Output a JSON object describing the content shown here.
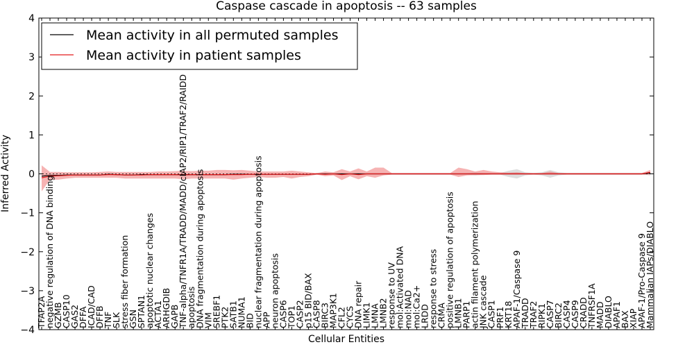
{
  "chart_data": {
    "type": "line",
    "title": "Caspase cascade in apoptosis -- 63 samples",
    "xlabel": "Cellular Entities",
    "ylabel": "Inferred Activity",
    "ylim": [
      -4,
      4
    ],
    "yticks": [
      -4,
      -3,
      -2,
      -1,
      0,
      1,
      2,
      3,
      4
    ],
    "grid": false,
    "legend_position": "top-left",
    "categories": [
      "TFAP2A",
      "negative regulation of DNA binding",
      "GZMB",
      "CASP10",
      "GAS2",
      "DFFA",
      "ICAD/CAD",
      "DFFB",
      "TNF",
      "SLK",
      "stress fiber formation",
      "GSN",
      "SPTAN1",
      "apoptotic nuclear changes",
      "ACTA1",
      "ARHGDIB",
      "GAPB",
      "TNF-alpha/TNFR1A/TRADD/MADD/cIAP2/RIP1/TRAF2/RAIDD",
      "apoptosis",
      "DNA fragmentation during apoptosis",
      "VIM",
      "SREBF1",
      "PTK2",
      "SATB1",
      "NUMA1",
      "BID",
      "nuclear fragmentation during apoptosis",
      "APP",
      "neuron apoptosis",
      "CASP6",
      "TOP1",
      "CASP2",
      "p15 BID/BAX",
      "CASP8",
      "BIRC3",
      "MAP3K1",
      "CFL2",
      "CYCS",
      "DNA repair",
      "LIMK1",
      "LMNA",
      "LMNB2",
      "response to UV",
      "mol:Activated DNA",
      "mol:NAD",
      "mol:Ca2+",
      "LRDD",
      "response to stress",
      "CRMA",
      "positive regulation of apoptosis",
      "LMNB1",
      "PARP1",
      "actin filament polymerization",
      "JNK cascade",
      "CASP1",
      "PRF1",
      "KRT18",
      "APAF-1/Caspase 9",
      "TRADD",
      "TRAF2",
      "RIPK1",
      "CASP7",
      "BIRC2",
      "CASP4",
      "CASP9",
      "CRADD",
      "TNFRSF1A",
      "MADD",
      "DIABLO",
      "APAF1",
      "BAX",
      "XIAP",
      "APAF-1/Pro-Caspase 9",
      "Mammalian IAPs/DIABLO"
    ],
    "series": [
      {
        "name": "Mean activity in all permuted samples",
        "color": "#000000",
        "values": [
          -0.06,
          -0.04,
          -0.04,
          -0.03,
          -0.03,
          -0.03,
          -0.03,
          -0.03,
          -0.01,
          -0.02,
          -0.03,
          -0.03,
          -0.02,
          -0.02,
          -0.02,
          -0.02,
          -0.02,
          -0.02,
          -0.02,
          -0.02,
          -0.02,
          -0.02,
          -0.02,
          -0.01,
          -0.01,
          -0.01,
          -0.01,
          -0.01,
          -0.01,
          -0.01,
          -0.01,
          -0.01,
          -0.01,
          0.0,
          0.0,
          0.0,
          0.0,
          0.0,
          0.0,
          0.0,
          0.0,
          0.0,
          0.0,
          0.0,
          0.0,
          0.0,
          0.0,
          0.0,
          0.0,
          0.0,
          0.0,
          0.0,
          0.0,
          0.0,
          0.0,
          0.0,
          0.0,
          0.0,
          0.0,
          0.0,
          0.0,
          0.0,
          0.0,
          0.0,
          0.0,
          0.0,
          0.0,
          0.0,
          0.0,
          0.0,
          0.0,
          0.0,
          0.0,
          0.02
        ],
        "band_low": [
          -0.06,
          -0.05,
          -0.05,
          -0.04,
          -0.04,
          -0.04,
          -0.04,
          -0.04,
          -0.03,
          -0.04,
          -0.04,
          -0.04,
          -0.04,
          -0.04,
          -0.04,
          -0.04,
          -0.04,
          -0.04,
          -0.04,
          -0.04,
          -0.04,
          -0.04,
          -0.04,
          -0.03,
          -0.03,
          -0.03,
          -0.03,
          -0.03,
          -0.03,
          -0.03,
          -0.03,
          -0.03,
          -0.03,
          -0.02,
          -0.02,
          -0.02,
          -0.02,
          -0.02,
          -0.02,
          -0.02,
          -0.02,
          -0.02,
          -0.02,
          -0.02,
          -0.02,
          -0.02,
          -0.02,
          -0.02,
          -0.02,
          -0.02,
          -0.02,
          -0.02,
          -0.04,
          -0.02,
          -0.02,
          -0.02,
          -0.08,
          -0.12,
          -0.04,
          -0.02,
          -0.04,
          -0.1,
          -0.04,
          -0.02,
          -0.02,
          -0.02,
          -0.02,
          -0.02,
          -0.02,
          -0.02,
          -0.02,
          -0.02,
          -0.02,
          -0.04
        ],
        "band_high": [
          -0.02,
          -0.02,
          -0.02,
          -0.01,
          -0.01,
          -0.01,
          -0.01,
          -0.01,
          0.0,
          -0.01,
          -0.01,
          -0.01,
          -0.01,
          -0.01,
          -0.01,
          -0.01,
          -0.01,
          -0.01,
          -0.01,
          -0.01,
          -0.01,
          -0.01,
          -0.01,
          0.0,
          0.0,
          0.0,
          0.0,
          0.0,
          0.0,
          0.0,
          0.0,
          0.0,
          0.0,
          0.01,
          0.01,
          0.01,
          0.01,
          0.01,
          0.01,
          0.01,
          0.01,
          0.01,
          0.01,
          0.01,
          0.01,
          0.01,
          0.01,
          0.01,
          0.01,
          0.01,
          0.01,
          0.01,
          0.04,
          0.02,
          0.02,
          0.02,
          0.08,
          0.12,
          0.04,
          0.02,
          0.04,
          0.1,
          0.04,
          0.02,
          0.02,
          0.02,
          0.02,
          0.02,
          0.02,
          0.02,
          0.02,
          0.02,
          0.02,
          0.06
        ]
      },
      {
        "name": "Mean activity in patient samples",
        "color": "#e31a1c",
        "values": [
          -0.1,
          -0.06,
          -0.05,
          -0.04,
          -0.03,
          -0.03,
          -0.03,
          -0.03,
          -0.02,
          -0.02,
          -0.03,
          -0.03,
          -0.03,
          -0.02,
          -0.02,
          -0.02,
          -0.02,
          -0.03,
          -0.02,
          -0.02,
          -0.02,
          -0.02,
          -0.02,
          -0.02,
          -0.02,
          -0.01,
          -0.01,
          -0.01,
          -0.01,
          -0.01,
          -0.01,
          -0.01,
          -0.01,
          0.0,
          -0.01,
          0.0,
          -0.02,
          0.0,
          -0.02,
          0.0,
          0.0,
          0.0,
          0.0,
          0.0,
          0.0,
          0.0,
          0.0,
          0.0,
          0.0,
          0.0,
          0.0,
          0.0,
          0.0,
          0.0,
          0.0,
          0.0,
          0.0,
          0.0,
          0.0,
          0.0,
          0.0,
          0.0,
          0.0,
          0.0,
          0.0,
          0.0,
          0.0,
          0.0,
          0.0,
          0.0,
          0.0,
          0.0,
          0.0,
          0.04
        ],
        "band_low": [
          -0.45,
          -0.15,
          -0.15,
          -0.12,
          -0.1,
          -0.1,
          -0.1,
          -0.1,
          -0.1,
          -0.1,
          -0.12,
          -0.12,
          -0.12,
          -0.12,
          -0.12,
          -0.12,
          -0.12,
          -0.14,
          -0.12,
          -0.12,
          -0.12,
          -0.12,
          -0.12,
          -0.15,
          -0.12,
          -0.1,
          -0.08,
          -0.1,
          -0.1,
          -0.08,
          -0.12,
          -0.08,
          -0.06,
          -0.02,
          -0.06,
          -0.04,
          -0.16,
          -0.06,
          -0.14,
          -0.06,
          -0.1,
          -0.04,
          -0.02,
          -0.02,
          -0.02,
          -0.02,
          -0.02,
          -0.02,
          -0.02,
          -0.02,
          -0.08,
          -0.04,
          -0.03,
          -0.03,
          -0.02,
          -0.02,
          -0.02,
          -0.02,
          -0.02,
          -0.02,
          -0.02,
          -0.02,
          -0.02,
          -0.02,
          -0.02,
          -0.02,
          -0.02,
          -0.02,
          -0.02,
          -0.02,
          -0.02,
          -0.02,
          -0.02,
          -0.02
        ],
        "band_high": [
          0.22,
          0.05,
          0.05,
          0.04,
          0.04,
          0.04,
          0.04,
          0.05,
          0.06,
          0.05,
          0.05,
          0.05,
          0.05,
          0.05,
          0.06,
          0.06,
          0.07,
          0.08,
          0.07,
          0.08,
          0.08,
          0.1,
          0.1,
          0.09,
          0.1,
          0.08,
          0.06,
          0.06,
          0.06,
          0.06,
          0.08,
          0.06,
          0.04,
          0.02,
          0.06,
          0.04,
          0.12,
          0.06,
          0.14,
          0.06,
          0.16,
          0.16,
          0.02,
          0.02,
          0.02,
          0.02,
          0.02,
          0.02,
          0.02,
          0.02,
          0.16,
          0.12,
          0.06,
          0.1,
          0.06,
          0.04,
          0.03,
          0.04,
          0.02,
          0.02,
          0.02,
          0.06,
          0.02,
          0.02,
          0.02,
          0.02,
          0.02,
          0.02,
          0.02,
          0.02,
          0.02,
          0.02,
          0.02,
          0.1
        ]
      }
    ]
  }
}
